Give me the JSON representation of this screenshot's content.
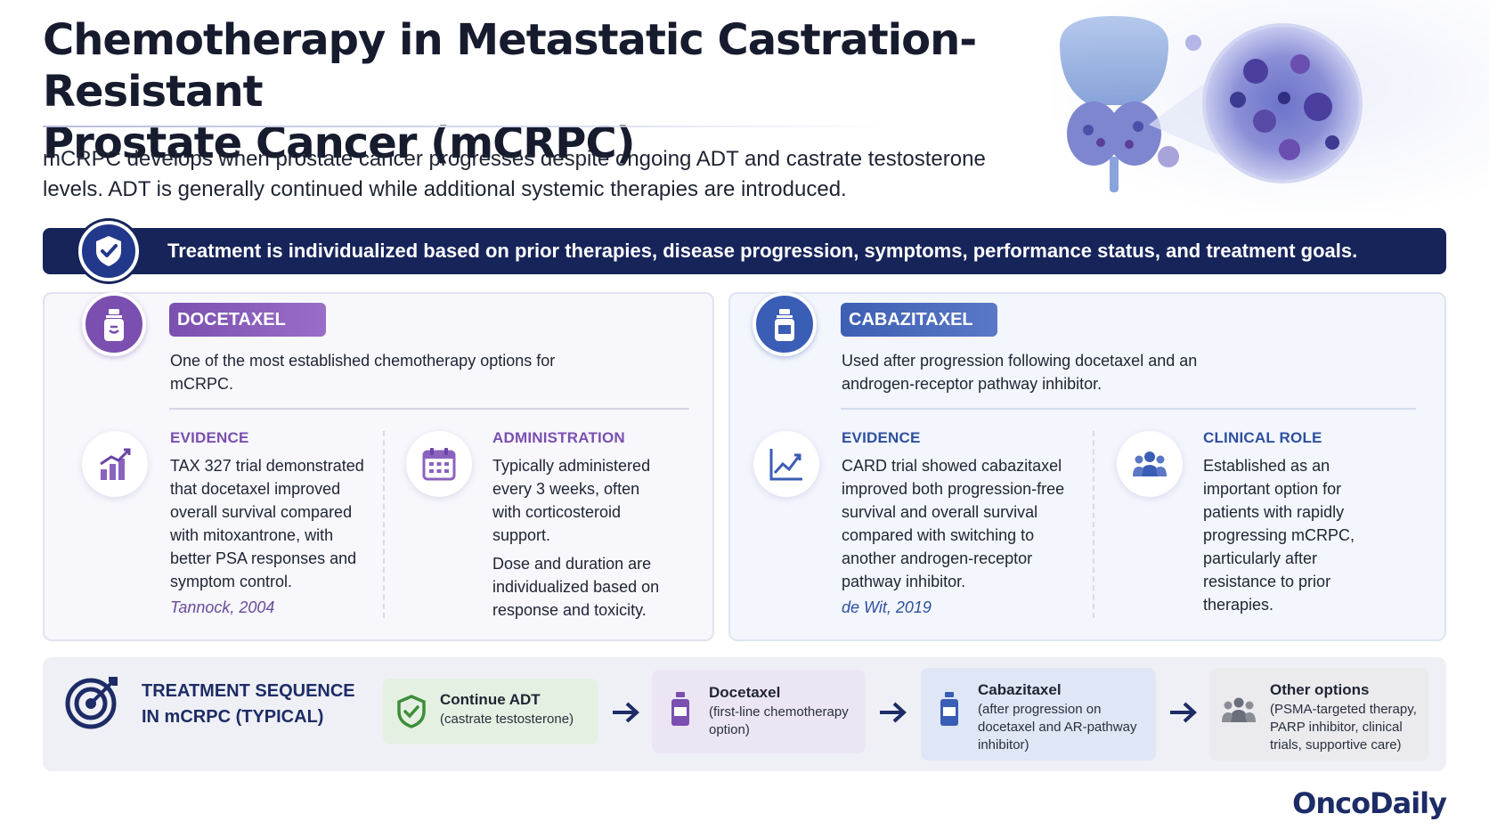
{
  "header": {
    "title_line1": "Chemotherapy in Metastatic Castration-Resistant",
    "title_line2": "Prostate Cancer (mCRPC)",
    "intro": "mCRPC develops when prostate cancer progresses despite ongoing ADT and castrate testosterone levels. ADT is generally continued while additional systemic therapies are introduced."
  },
  "banner": {
    "icon": "shield-check-icon",
    "text": "Treatment is individualized based on prior therapies, disease progression, symptoms, performance status, and treatment goals."
  },
  "docetaxel": {
    "label": "DOCETAXEL",
    "icon": "vial-icon",
    "description": "One of the most established chemotherapy options for mCRPC.",
    "evidence": {
      "heading": "EVIDENCE",
      "icon": "bar-chart-icon",
      "body": "TAX 327 trial demonstrated that docetaxel improved overall survival compared with mitoxantrone, with better PSA responses and symptom control.",
      "citation": "Tannock, 2004"
    },
    "administration": {
      "heading": "ADMINISTRATION",
      "icon": "calendar-icon",
      "body1": "Typically administered every 3 weeks, often with corticosteroid support.",
      "body2": "Dose and duration are individualized based on response and toxicity."
    }
  },
  "cabazitaxel": {
    "label": "CABAZITAXEL",
    "icon": "vial-icon",
    "description": "Used after progression following docetaxel and an androgen-receptor pathway inhibitor.",
    "evidence": {
      "heading": "EVIDENCE",
      "icon": "line-chart-icon",
      "body": "CARD trial showed cabazitaxel improved both progression-free survival and overall survival compared with switching to another androgen-receptor pathway inhibitor.",
      "citation": "de Wit, 2019"
    },
    "clinical_role": {
      "heading": "CLINICAL ROLE",
      "icon": "people-icon",
      "body": "Established as an important option for patients with rapidly progressing mCRPC, particularly after resistance to prior therapies."
    }
  },
  "sequence": {
    "title_line1": "TREATMENT SEQUENCE",
    "title_line2": "IN mCRPC (TYPICAL)",
    "icon": "target-icon",
    "steps": [
      {
        "title": "Continue ADT",
        "sub": "(castrate testosterone)",
        "icon": "shield-icon"
      },
      {
        "title": "Docetaxel",
        "sub": "(first-line chemotherapy option)",
        "icon": "vial-icon"
      },
      {
        "title": "Cabazitaxel",
        "sub": "(after progression on docetaxel and AR-pathway inhibitor)",
        "icon": "vial-icon"
      },
      {
        "title": "Other options",
        "sub": "(PSMA-targeted therapy, PARP inhibitor, clinical trials, supportive care)",
        "icon": "people-icon"
      }
    ]
  },
  "brand": "OncoDaily",
  "colors": {
    "navy": "#16245a",
    "purple": "#7a4fb0",
    "blue": "#3a5db5",
    "green_step": "#e4f1e2",
    "purple_step": "#ece6f4",
    "blue_step": "#dfe7f6",
    "gray_step": "#ebebee"
  }
}
